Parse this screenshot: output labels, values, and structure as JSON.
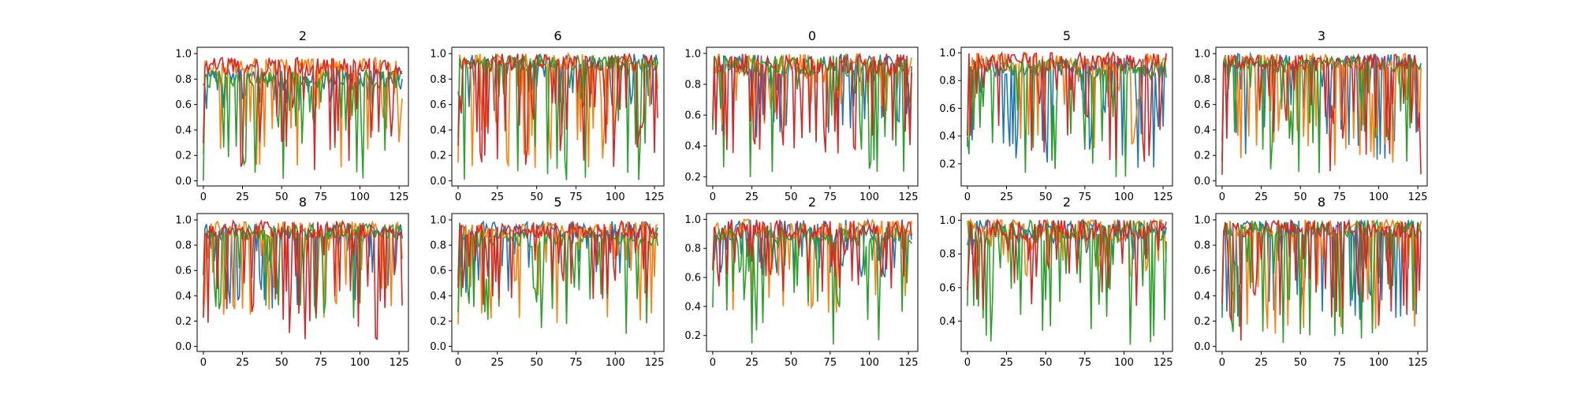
{
  "figure": {
    "background": "#ffffff",
    "series_colors": [
      "#1f77b4",
      "#ff7f0e",
      "#2ca02c",
      "#d62728"
    ]
  },
  "chart_data": [
    {
      "type": "line",
      "title": "2",
      "xlabel": "",
      "ylabel": "",
      "xlim": [
        -4,
        131
      ],
      "ylim": [
        -0.04,
        1.05
      ],
      "xticks": [
        "0",
        "25",
        "50",
        "75",
        "100",
        "125"
      ],
      "yticks": [
        "0.0",
        "0.2",
        "0.4",
        "0.6",
        "0.8",
        "1.0"
      ],
      "x_range": [
        0,
        127
      ],
      "series_levels": {
        "baseline": [
          0.82,
          0.9,
          0.8,
          0.9
        ],
        "dip_floor": [
          0.55,
          0.1,
          0.0,
          0.05
        ]
      }
    },
    {
      "type": "line",
      "title": "6",
      "xlabel": "",
      "ylabel": "",
      "xlim": [
        -4,
        131
      ],
      "ylim": [
        -0.04,
        1.05
      ],
      "xticks": [
        "0",
        "25",
        "50",
        "75",
        "100",
        "125"
      ],
      "yticks": [
        "0.0",
        "0.2",
        "0.4",
        "0.6",
        "0.8",
        "1.0"
      ],
      "x_range": [
        0,
        127
      ],
      "series_levels": {
        "baseline": [
          0.93,
          0.93,
          0.92,
          0.93
        ],
        "dip_floor": [
          0.5,
          0.05,
          0.0,
          0.05
        ]
      }
    },
    {
      "type": "line",
      "title": "0",
      "xlabel": "",
      "ylabel": "",
      "xlim": [
        -4,
        131
      ],
      "ylim": [
        0.14,
        1.04
      ],
      "xticks": [
        "0",
        "25",
        "50",
        "75",
        "100",
        "125"
      ],
      "yticks": [
        "0.2",
        "0.4",
        "0.6",
        "0.8",
        "1.0"
      ],
      "x_range": [
        0,
        127
      ],
      "series_levels": {
        "baseline": [
          0.93,
          0.93,
          0.92,
          0.93
        ],
        "dip_floor": [
          0.45,
          0.5,
          0.18,
          0.35
        ]
      }
    },
    {
      "type": "line",
      "title": "5",
      "xlabel": "",
      "ylabel": "",
      "xlim": [
        -4,
        131
      ],
      "ylim": [
        0.04,
        1.04
      ],
      "xticks": [
        "0",
        "25",
        "50",
        "75",
        "100",
        "125"
      ],
      "yticks": [
        "0.2",
        "0.4",
        "0.6",
        "0.8",
        "1.0"
      ],
      "x_range": [
        0,
        127
      ],
      "series_levels": {
        "baseline": [
          0.9,
          0.93,
          0.88,
          0.93
        ],
        "dip_floor": [
          0.15,
          0.3,
          0.08,
          0.2
        ]
      }
    },
    {
      "type": "line",
      "title": "3",
      "xlabel": "",
      "ylabel": "",
      "xlim": [
        -4,
        131
      ],
      "ylim": [
        -0.04,
        1.05
      ],
      "xticks": [
        "0",
        "25",
        "50",
        "75",
        "100",
        "125"
      ],
      "yticks": [
        "0.0",
        "0.2",
        "0.4",
        "0.6",
        "0.8",
        "1.0"
      ],
      "x_range": [
        0,
        127
      ],
      "series_levels": {
        "baseline": [
          0.93,
          0.93,
          0.92,
          0.93
        ],
        "dip_floor": [
          0.15,
          0.1,
          0.05,
          0.0
        ]
      }
    },
    {
      "type": "line",
      "title": "8",
      "xlabel": "",
      "ylabel": "",
      "xlim": [
        -4,
        131
      ],
      "ylim": [
        -0.04,
        1.05
      ],
      "xticks": [
        "0",
        "25",
        "50",
        "75",
        "100",
        "125"
      ],
      "yticks": [
        "0.0",
        "0.2",
        "0.4",
        "0.6",
        "0.8",
        "1.0"
      ],
      "x_range": [
        0,
        127
      ],
      "series_levels": {
        "baseline": [
          0.9,
          0.92,
          0.9,
          0.92
        ],
        "dip_floor": [
          0.3,
          0.2,
          0.05,
          0.05
        ]
      }
    },
    {
      "type": "line",
      "title": "5",
      "xlabel": "",
      "ylabel": "",
      "xlim": [
        -4,
        131
      ],
      "ylim": [
        -0.04,
        1.05
      ],
      "xticks": [
        "0",
        "25",
        "50",
        "75",
        "100",
        "125"
      ],
      "yticks": [
        "0.0",
        "0.2",
        "0.4",
        "0.6",
        "0.8",
        "1.0"
      ],
      "x_range": [
        0,
        127
      ],
      "series_levels": {
        "baseline": [
          0.92,
          0.92,
          0.85,
          0.92
        ],
        "dip_floor": [
          0.4,
          0.15,
          0.0,
          0.3
        ]
      }
    },
    {
      "type": "line",
      "title": "2",
      "xlabel": "",
      "ylabel": "",
      "xlim": [
        -4,
        131
      ],
      "ylim": [
        0.09,
        1.04
      ],
      "xticks": [
        "0",
        "25",
        "50",
        "75",
        "100",
        "125"
      ],
      "yticks": [
        "0.2",
        "0.4",
        "0.6",
        "0.8",
        "1.0"
      ],
      "x_range": [
        0,
        127
      ],
      "series_levels": {
        "baseline": [
          0.93,
          0.93,
          0.88,
          0.93
        ],
        "dip_floor": [
          0.6,
          0.35,
          0.12,
          0.5
        ]
      }
    },
    {
      "type": "line",
      "title": "2",
      "xlabel": "",
      "ylabel": "",
      "xlim": [
        -4,
        131
      ],
      "ylim": [
        0.22,
        1.04
      ],
      "xticks": [
        "0",
        "25",
        "50",
        "75",
        "100",
        "125"
      ],
      "yticks": [
        "0.4",
        "0.6",
        "0.8",
        "1.0"
      ],
      "x_range": [
        0,
        127
      ],
      "series_levels": {
        "baseline": [
          0.95,
          0.95,
          0.93,
          0.95
        ],
        "dip_floor": [
          0.75,
          0.65,
          0.25,
          0.45
        ]
      }
    },
    {
      "type": "line",
      "title": "8",
      "xlabel": "",
      "ylabel": "",
      "xlim": [
        -4,
        131
      ],
      "ylim": [
        -0.04,
        1.05
      ],
      "xticks": [
        "0",
        "25",
        "50",
        "75",
        "100",
        "125"
      ],
      "yticks": [
        "0.0",
        "0.2",
        "0.4",
        "0.6",
        "0.8",
        "1.0"
      ],
      "x_range": [
        0,
        127
      ],
      "series_levels": {
        "baseline": [
          0.93,
          0.93,
          0.93,
          0.93
        ],
        "dip_floor": [
          0.2,
          0.1,
          0.0,
          0.0
        ]
      }
    }
  ]
}
